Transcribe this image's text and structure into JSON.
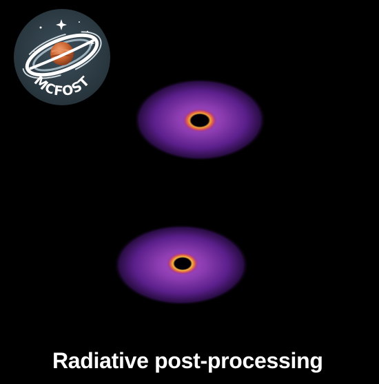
{
  "logo": {
    "text": "MCFOST",
    "icon": "saturn-galaxy-badge",
    "badge_color": "#2f3e48",
    "planet_color": "#c9622e"
  },
  "images": [
    {
      "name": "disc-image-top",
      "icon": "protoplanetary-disc-image"
    },
    {
      "name": "disc-image-bottom",
      "icon": "protoplanetary-disc-image"
    }
  ],
  "colors": {
    "background": "#000000",
    "disc_outer": "#5a1f8a",
    "disc_mid": "#8b3cb0",
    "ring": "#f4a43a",
    "caption": "#ffffff"
  },
  "caption": "Radiative post-processing"
}
